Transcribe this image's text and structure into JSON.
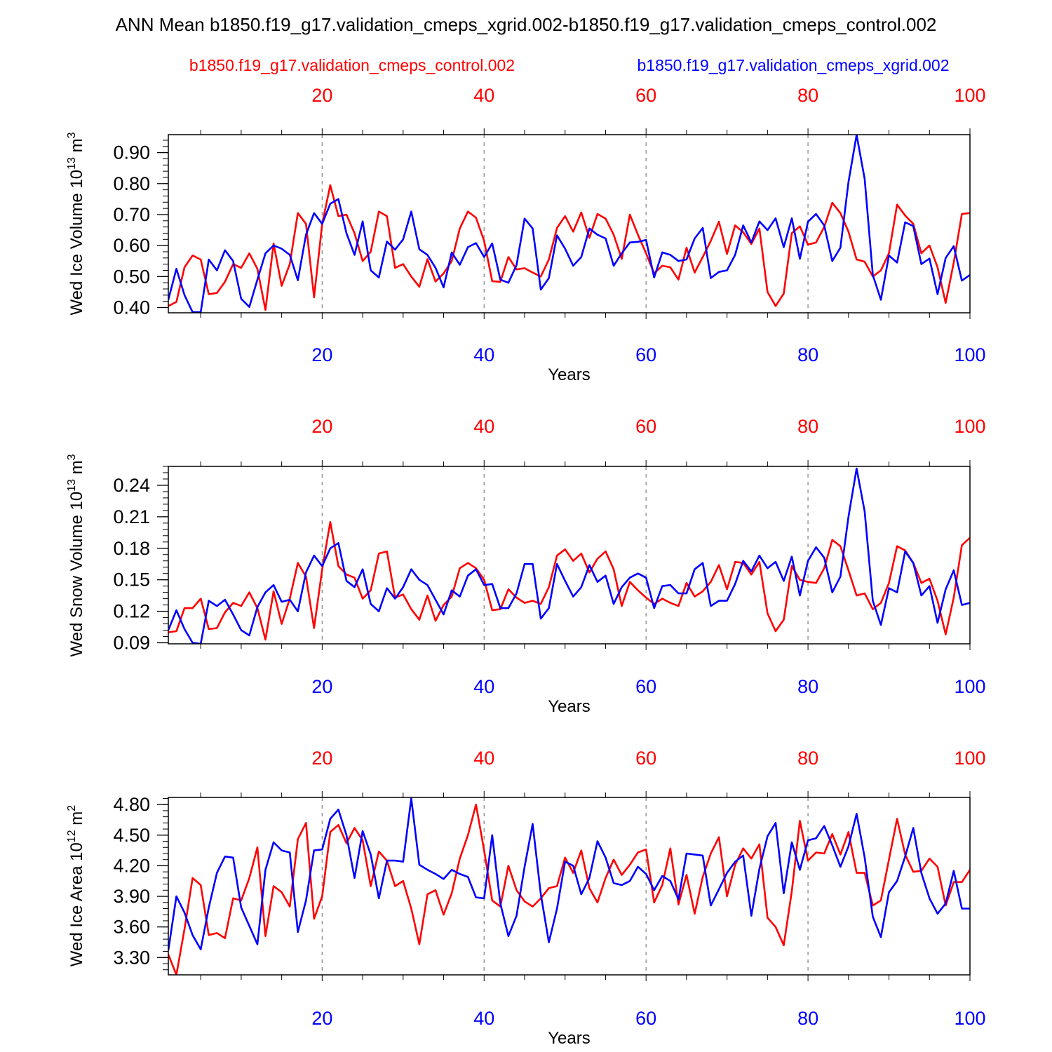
{
  "title": "ANN Mean b1850.f19_g17.validation_cmeps_xgrid.002-b1850.f19_g17.validation_cmeps_control.002",
  "legend": {
    "control": "b1850.f19_g17.validation_cmeps_control.002",
    "xgrid": "b1850.f19_g17.validation_cmeps_xgrid.002"
  },
  "colors": {
    "control": "#ff0000",
    "xgrid": "#0000ff",
    "axis": "#000000",
    "grid": "#888888"
  },
  "chart_data": [
    {
      "type": "line",
      "ylabel": "Wed Ice Volume 10",
      "ylabel_exp": "13",
      "ylabel_unit": " m",
      "ylabel_unit_exp": "3",
      "xlabel": "Years",
      "xlim": [
        1,
        100
      ],
      "ylim": [
        0.383,
        0.958
      ],
      "yticks": [
        0.4,
        0.5,
        0.6,
        0.7,
        0.8,
        0.9
      ],
      "ytick_labels": [
        "0.40",
        "0.50",
        "0.60",
        "0.70",
        "0.80",
        "0.90"
      ],
      "yminor_step": 0.02,
      "xticks": [
        20,
        40,
        60,
        80,
        100
      ],
      "xtick_labels": [
        "20",
        "40",
        "60",
        "80",
        "100"
      ],
      "series": [
        {
          "name": "b1850.f19_g17.validation_cmeps_control.002",
          "key": "control",
          "values": [
            0.405,
            0.418,
            0.53,
            0.568,
            0.555,
            0.443,
            0.447,
            0.483,
            0.54,
            0.528,
            0.575,
            0.525,
            0.392,
            0.607,
            0.47,
            0.54,
            0.705,
            0.67,
            0.433,
            0.67,
            0.795,
            0.695,
            0.7,
            0.64,
            0.55,
            0.58,
            0.71,
            0.695,
            0.528,
            0.54,
            0.5,
            0.467,
            0.556,
            0.484,
            0.51,
            0.55,
            0.655,
            0.71,
            0.69,
            0.615,
            0.485,
            0.483,
            0.563,
            0.523,
            0.527,
            0.513,
            0.5,
            0.555,
            0.657,
            0.695,
            0.645,
            0.707,
            0.625,
            0.702,
            0.687,
            0.635,
            0.557,
            0.7,
            0.635,
            0.575,
            0.51,
            0.535,
            0.53,
            0.49,
            0.593,
            0.513,
            0.563,
            0.615,
            0.677,
            0.573,
            0.665,
            0.643,
            0.605,
            0.655,
            0.45,
            0.405,
            0.445,
            0.64,
            0.662,
            0.603,
            0.61,
            0.66,
            0.738,
            0.705,
            0.645,
            0.555,
            0.548,
            0.5,
            0.52,
            0.575,
            0.732,
            0.697,
            0.67,
            0.575,
            0.6,
            0.53,
            0.415,
            0.545,
            0.702,
            0.705
          ]
        },
        {
          "name": "b1850.f19_g17.validation_cmeps_xgrid.002",
          "key": "xgrid",
          "values": [
            0.425,
            0.525,
            0.44,
            0.385,
            0.385,
            0.555,
            0.52,
            0.585,
            0.55,
            0.428,
            0.402,
            0.49,
            0.575,
            0.6,
            0.59,
            0.57,
            0.488,
            0.635,
            0.705,
            0.67,
            0.735,
            0.75,
            0.64,
            0.57,
            0.678,
            0.52,
            0.497,
            0.613,
            0.587,
            0.62,
            0.71,
            0.588,
            0.57,
            0.528,
            0.465,
            0.578,
            0.538,
            0.595,
            0.608,
            0.563,
            0.607,
            0.49,
            0.48,
            0.537,
            0.687,
            0.655,
            0.458,
            0.495,
            0.633,
            0.59,
            0.535,
            0.563,
            0.655,
            0.635,
            0.623,
            0.535,
            0.575,
            0.61,
            0.612,
            0.618,
            0.497,
            0.578,
            0.57,
            0.55,
            0.555,
            0.623,
            0.657,
            0.495,
            0.515,
            0.52,
            0.57,
            0.665,
            0.61,
            0.678,
            0.65,
            0.688,
            0.595,
            0.688,
            0.557,
            0.677,
            0.702,
            0.665,
            0.55,
            0.593,
            0.805,
            0.957,
            0.815,
            0.505,
            0.425,
            0.568,
            0.545,
            0.675,
            0.663,
            0.54,
            0.558,
            0.443,
            0.56,
            0.598,
            0.487,
            0.505
          ]
        }
      ]
    },
    {
      "type": "line",
      "ylabel": "Wed Snow Volume 10",
      "ylabel_exp": "13",
      "ylabel_unit": " m",
      "ylabel_unit_exp": "3",
      "xlabel": "Years",
      "xlim": [
        1,
        100
      ],
      "ylim": [
        0.089,
        0.258
      ],
      "yticks": [
        0.09,
        0.12,
        0.15,
        0.18,
        0.21,
        0.24
      ],
      "ytick_labels": [
        "0.09",
        "0.12",
        "0.15",
        "0.18",
        "0.21",
        "0.24"
      ],
      "yminor_step": 0.006,
      "xticks": [
        20,
        40,
        60,
        80,
        100
      ],
      "xtick_labels": [
        "20",
        "40",
        "60",
        "80",
        "100"
      ],
      "series": [
        {
          "name": "b1850.f19_g17.validation_cmeps_control.002",
          "key": "control",
          "values": [
            0.1,
            0.101,
            0.123,
            0.123,
            0.132,
            0.103,
            0.104,
            0.119,
            0.128,
            0.125,
            0.138,
            0.123,
            0.093,
            0.139,
            0.108,
            0.132,
            0.166,
            0.153,
            0.104,
            0.16,
            0.205,
            0.163,
            0.155,
            0.152,
            0.132,
            0.14,
            0.175,
            0.177,
            0.133,
            0.136,
            0.122,
            0.112,
            0.135,
            0.111,
            0.126,
            0.134,
            0.161,
            0.166,
            0.161,
            0.15,
            0.121,
            0.122,
            0.141,
            0.133,
            0.128,
            0.13,
            0.127,
            0.143,
            0.173,
            0.179,
            0.168,
            0.175,
            0.157,
            0.17,
            0.177,
            0.16,
            0.125,
            0.148,
            0.14,
            0.133,
            0.127,
            0.132,
            0.128,
            0.125,
            0.147,
            0.134,
            0.139,
            0.148,
            0.164,
            0.141,
            0.167,
            0.166,
            0.155,
            0.167,
            0.118,
            0.101,
            0.112,
            0.163,
            0.15,
            0.148,
            0.147,
            0.161,
            0.188,
            0.182,
            0.159,
            0.135,
            0.137,
            0.122,
            0.128,
            0.147,
            0.182,
            0.178,
            0.166,
            0.147,
            0.151,
            0.13,
            0.098,
            0.133,
            0.183,
            0.19
          ]
        },
        {
          "name": "b1850.f19_g17.validation_cmeps_xgrid.002",
          "key": "xgrid",
          "values": [
            0.102,
            0.121,
            0.103,
            0.09,
            0.089,
            0.13,
            0.125,
            0.131,
            0.117,
            0.102,
            0.097,
            0.124,
            0.138,
            0.145,
            0.129,
            0.131,
            0.12,
            0.157,
            0.173,
            0.163,
            0.18,
            0.185,
            0.149,
            0.143,
            0.16,
            0.127,
            0.12,
            0.142,
            0.132,
            0.143,
            0.16,
            0.15,
            0.145,
            0.131,
            0.117,
            0.14,
            0.134,
            0.154,
            0.16,
            0.145,
            0.146,
            0.123,
            0.123,
            0.137,
            0.165,
            0.165,
            0.113,
            0.123,
            0.165,
            0.149,
            0.134,
            0.143,
            0.164,
            0.148,
            0.154,
            0.127,
            0.143,
            0.152,
            0.156,
            0.152,
            0.123,
            0.144,
            0.145,
            0.137,
            0.137,
            0.16,
            0.166,
            0.125,
            0.13,
            0.13,
            0.146,
            0.168,
            0.158,
            0.173,
            0.161,
            0.167,
            0.149,
            0.172,
            0.135,
            0.168,
            0.181,
            0.171,
            0.138,
            0.153,
            0.21,
            0.256,
            0.215,
            0.13,
            0.107,
            0.142,
            0.138,
            0.177,
            0.166,
            0.135,
            0.144,
            0.109,
            0.141,
            0.159,
            0.126,
            0.128
          ]
        }
      ]
    },
    {
      "type": "line",
      "ylabel": "Wed Ice Area 10",
      "ylabel_exp": "12",
      "ylabel_unit": " m",
      "ylabel_unit_exp": "2",
      "xlabel": "Years",
      "xlim": [
        1,
        100
      ],
      "ylim": [
        3.13,
        4.87
      ],
      "yticks": [
        3.3,
        3.6,
        3.9,
        4.2,
        4.5,
        4.8
      ],
      "ytick_labels": [
        "3.30",
        "3.60",
        "3.90",
        "4.20",
        "4.50",
        "4.80"
      ],
      "yminor_step": 0.06,
      "xticks": [
        20,
        40,
        60,
        80,
        100
      ],
      "xtick_labels": [
        "20",
        "40",
        "60",
        "80",
        "100"
      ],
      "series": [
        {
          "name": "b1850.f19_g17.validation_cmeps_control.002",
          "key": "control",
          "values": [
            3.33,
            3.13,
            3.58,
            4.08,
            4.01,
            3.52,
            3.54,
            3.49,
            3.88,
            3.86,
            4.08,
            4.38,
            3.51,
            4.0,
            3.94,
            3.8,
            4.46,
            4.62,
            3.68,
            3.9,
            4.53,
            4.6,
            4.42,
            4.57,
            4.45,
            4.0,
            4.34,
            4.25,
            4.0,
            4.05,
            3.78,
            3.43,
            3.92,
            3.96,
            3.72,
            3.93,
            4.27,
            4.5,
            4.8,
            4.35,
            3.86,
            3.8,
            4.2,
            3.96,
            3.85,
            3.8,
            3.88,
            3.98,
            4.0,
            4.28,
            4.13,
            4.35,
            3.98,
            3.84,
            4.08,
            4.26,
            4.11,
            4.21,
            4.33,
            4.36,
            3.84,
            4.01,
            4.37,
            3.82,
            4.11,
            3.73,
            4.09,
            4.32,
            4.48,
            3.9,
            4.21,
            4.37,
            4.27,
            4.41,
            3.69,
            3.6,
            3.42,
            3.95,
            4.64,
            4.25,
            4.33,
            4.32,
            4.51,
            4.31,
            4.53,
            4.13,
            4.13,
            3.81,
            3.86,
            4.26,
            4.66,
            4.31,
            4.14,
            4.15,
            4.27,
            4.19,
            3.81,
            4.04,
            4.04,
            4.16
          ]
        },
        {
          "name": "b1850.f19_g17.validation_cmeps_xgrid.002",
          "key": "xgrid",
          "values": [
            3.37,
            3.9,
            3.74,
            3.52,
            3.38,
            3.79,
            4.13,
            4.29,
            4.28,
            3.79,
            3.61,
            3.43,
            4.16,
            4.43,
            4.35,
            4.33,
            3.55,
            3.86,
            4.35,
            4.36,
            4.66,
            4.75,
            4.5,
            4.08,
            4.54,
            4.31,
            3.88,
            4.25,
            4.25,
            4.24,
            4.86,
            4.21,
            4.16,
            4.12,
            4.07,
            4.16,
            4.12,
            4.09,
            3.89,
            3.88,
            4.5,
            3.83,
            3.51,
            3.71,
            4.19,
            4.61,
            3.92,
            3.45,
            3.78,
            4.24,
            4.2,
            3.92,
            4.08,
            4.44,
            4.28,
            4.03,
            4.01,
            4.05,
            4.19,
            4.12,
            3.96,
            4.1,
            4.05,
            3.87,
            4.32,
            4.31,
            4.3,
            3.81,
            3.97,
            4.13,
            4.24,
            4.3,
            3.71,
            4.17,
            4.49,
            4.62,
            3.93,
            4.43,
            4.16,
            4.45,
            4.47,
            4.59,
            4.4,
            4.19,
            4.39,
            4.71,
            4.28,
            3.7,
            3.5,
            3.94,
            4.05,
            4.29,
            4.57,
            4.13,
            3.88,
            3.73,
            3.83,
            4.15,
            3.78,
            3.78
          ]
        }
      ]
    }
  ]
}
